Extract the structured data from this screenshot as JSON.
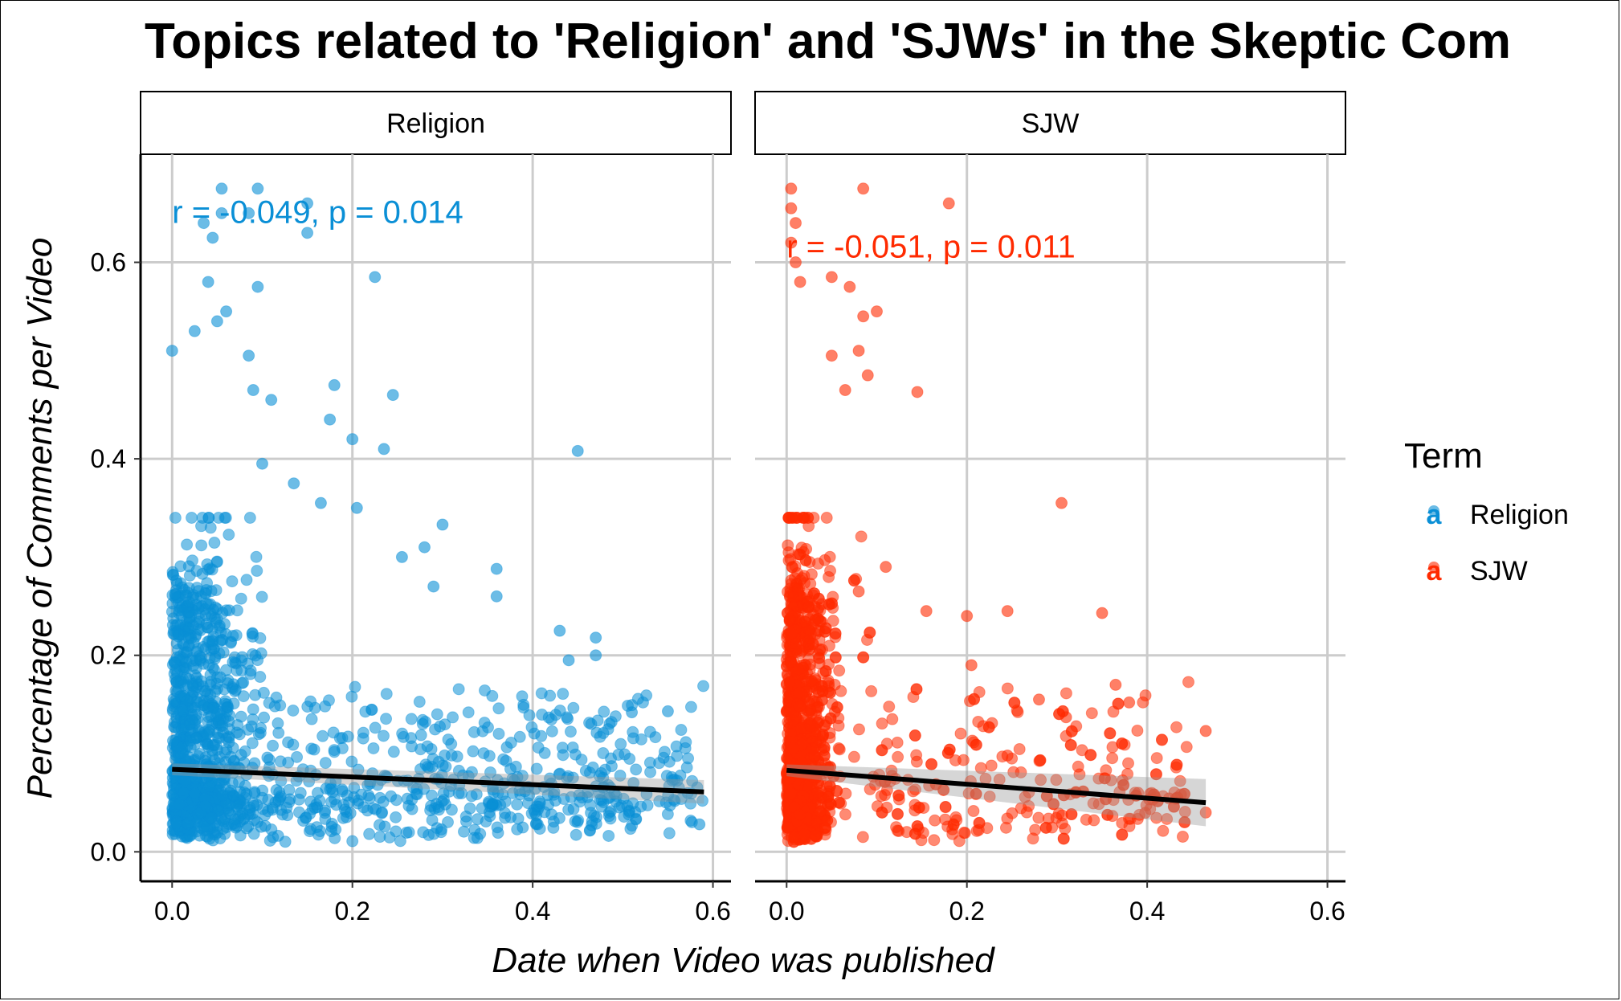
{
  "chart_data": {
    "type": "scatter",
    "title": "Topics related to 'Religion' and 'SJWs' in the Skeptic Com",
    "xlabel": "Date when Video was published",
    "ylabel": "Percentage of Comments per Video",
    "xlim": [
      -0.035,
      0.62
    ],
    "ylim": [
      -0.03,
      0.71
    ],
    "x_ticks": [
      "0.0",
      "0.2",
      "0.4",
      "0.6"
    ],
    "y_ticks": [
      "0.0",
      "0.2",
      "0.4",
      "0.6"
    ],
    "x_tick_values": [
      0,
      0.2,
      0.4,
      0.6
    ],
    "y_tick_values": [
      0,
      0.2,
      0.4,
      0.6
    ],
    "grid": true,
    "legend": {
      "title": "Term",
      "position": "right",
      "entries": [
        {
          "label": "Religion",
          "color": "#0A8FD6"
        },
        {
          "label": "SJW",
          "color": "#FF2A00"
        }
      ]
    },
    "facets": [
      {
        "label": "Religion",
        "color": "#0A8FD6",
        "annotation": "r = -0.049, p = 0.014",
        "annotation_pos": [
          0.0,
          0.64
        ],
        "trend": {
          "x": [
            0.0,
            0.59
          ],
          "y": [
            0.084,
            0.061
          ],
          "se_band": [
            0.006,
            0.012
          ]
        },
        "x_max": 0.59,
        "notable_points": [
          [
            0.0,
            0.51
          ],
          [
            0.025,
            0.53
          ],
          [
            0.035,
            0.64
          ],
          [
            0.045,
            0.625
          ],
          [
            0.055,
            0.675
          ],
          [
            0.095,
            0.675
          ],
          [
            0.055,
            0.65
          ],
          [
            0.085,
            0.65
          ],
          [
            0.15,
            0.66
          ],
          [
            0.15,
            0.63
          ],
          [
            0.095,
            0.575
          ],
          [
            0.225,
            0.585
          ],
          [
            0.04,
            0.58
          ],
          [
            0.05,
            0.54
          ],
          [
            0.06,
            0.55
          ],
          [
            0.085,
            0.505
          ],
          [
            0.09,
            0.47
          ],
          [
            0.11,
            0.46
          ],
          [
            0.18,
            0.475
          ],
          [
            0.245,
            0.465
          ],
          [
            0.175,
            0.44
          ],
          [
            0.2,
            0.42
          ],
          [
            0.235,
            0.41
          ],
          [
            0.45,
            0.408
          ],
          [
            0.1,
            0.395
          ],
          [
            0.135,
            0.375
          ],
          [
            0.165,
            0.355
          ],
          [
            0.205,
            0.35
          ],
          [
            0.3,
            0.333
          ],
          [
            0.255,
            0.3
          ],
          [
            0.28,
            0.31
          ],
          [
            0.36,
            0.288
          ],
          [
            0.29,
            0.27
          ],
          [
            0.36,
            0.26
          ],
          [
            0.43,
            0.225
          ],
          [
            0.47,
            0.218
          ],
          [
            0.47,
            0.2
          ],
          [
            0.44,
            0.195
          ],
          [
            0.55,
            0.143
          ],
          [
            0.51,
            0.142
          ],
          [
            0.585,
            0.028
          ]
        ]
      },
      {
        "label": "SJW",
        "color": "#FF2A00",
        "annotation": "r = -0.051, p = 0.011",
        "annotation_pos": [
          0.0,
          0.605
        ],
        "trend": {
          "x": [
            0.0,
            0.465
          ],
          "y": [
            0.083,
            0.05
          ],
          "se_band": [
            0.006,
            0.024
          ]
        },
        "x_max": 0.47,
        "notable_points": [
          [
            0.005,
            0.675
          ],
          [
            0.085,
            0.675
          ],
          [
            0.18,
            0.66
          ],
          [
            0.005,
            0.655
          ],
          [
            0.01,
            0.64
          ],
          [
            0.005,
            0.62
          ],
          [
            0.01,
            0.6
          ],
          [
            0.015,
            0.58
          ],
          [
            0.05,
            0.585
          ],
          [
            0.07,
            0.575
          ],
          [
            0.085,
            0.545
          ],
          [
            0.1,
            0.55
          ],
          [
            0.08,
            0.51
          ],
          [
            0.05,
            0.505
          ],
          [
            0.09,
            0.485
          ],
          [
            0.145,
            0.468
          ],
          [
            0.065,
            0.47
          ],
          [
            0.305,
            0.355
          ],
          [
            0.11,
            0.29
          ],
          [
            0.08,
            0.265
          ],
          [
            0.155,
            0.245
          ],
          [
            0.245,
            0.245
          ],
          [
            0.2,
            0.24
          ],
          [
            0.35,
            0.243
          ],
          [
            0.365,
            0.17
          ],
          [
            0.38,
            0.152
          ],
          [
            0.465,
            0.123
          ],
          [
            0.28,
            0.155
          ],
          [
            0.31,
            0.137
          ],
          [
            0.205,
            0.19
          ],
          [
            0.245,
            0.098
          ],
          [
            0.39,
            0.06
          ],
          [
            0.465,
            0.04
          ]
        ]
      }
    ]
  }
}
